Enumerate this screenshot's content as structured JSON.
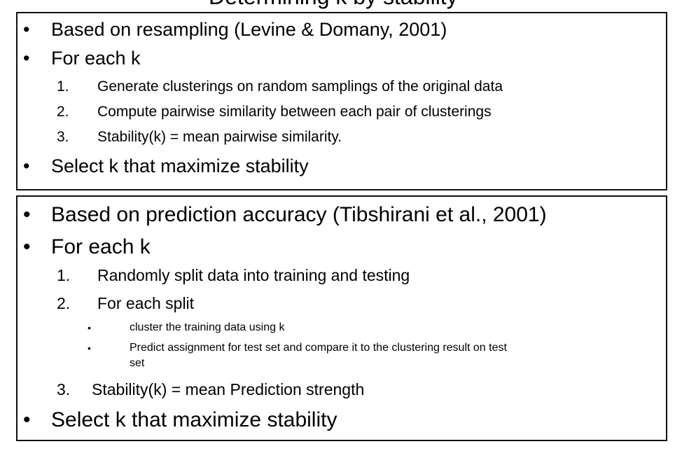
{
  "header_fragment": "Determining k by stability",
  "box1": {
    "items": [
      {
        "type": "bullet",
        "text": "Based on resampling (Levine & Domany, 2001)"
      },
      {
        "type": "bullet",
        "text": "For each k"
      },
      {
        "type": "numbered",
        "num": "1.",
        "text": "Generate clusterings on random samplings of the original data"
      },
      {
        "type": "numbered",
        "num": "2.",
        "text": "Compute pairwise similarity between each pair of clusterings"
      },
      {
        "type": "numbered",
        "num": "3.",
        "text": "Stability(k) = mean pairwise similarity."
      },
      {
        "type": "bullet",
        "text": "Select k that maximize stability"
      }
    ]
  },
  "box2": {
    "items": [
      {
        "type": "bullet",
        "text": "Based on prediction accuracy (Tibshirani et al., 2001)"
      },
      {
        "type": "bullet",
        "text": "For each k"
      },
      {
        "type": "numbered",
        "num": "1.",
        "text": "Randomly split data into training and testing"
      },
      {
        "type": "numbered",
        "num": "2.",
        "text": "For each split"
      },
      {
        "type": "sub",
        "text": "cluster the training data using k"
      },
      {
        "type": "sub",
        "text": "Predict assignment for test set and compare it to the clustering result on test"
      },
      {
        "type": "sub-cont",
        "text": "set"
      },
      {
        "type": "numbered",
        "num": "3.",
        "text": "Stability(k) = mean Prediction strength"
      },
      {
        "type": "bullet",
        "text": "Select k that maximize stability"
      }
    ]
  },
  "bullet_glyph": "•"
}
